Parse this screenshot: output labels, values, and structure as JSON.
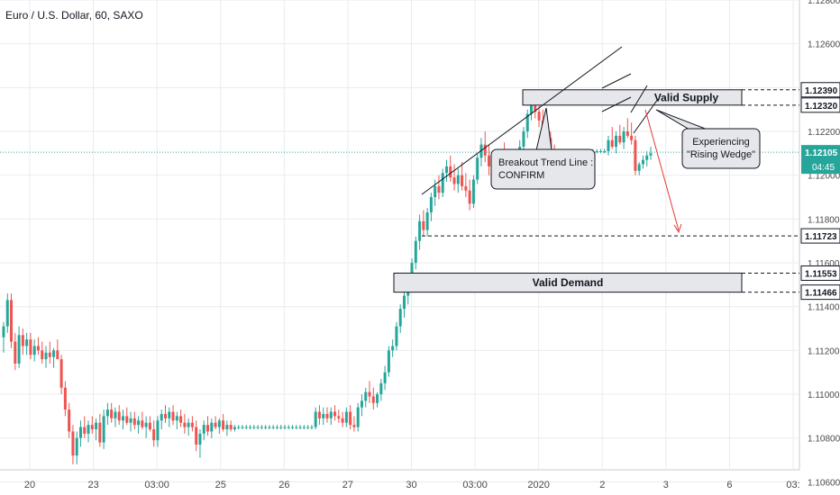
{
  "header": {
    "symbol_title": "Euro / U.S. Dollar, 60, SAXO"
  },
  "colors": {
    "up": "#26a69a",
    "down": "#ef5350",
    "grid": "#e9ebf0",
    "axis_text": "#4a4a4a",
    "current_line": "#26a69a",
    "label_bg": "#131722",
    "zone_fill": "#e6e7ea",
    "arrow": "#e53935"
  },
  "chart_data": {
    "type": "candlestick",
    "title": "Euro / U.S. Dollar, 60, SAXO",
    "ylim": [
      1.1054,
      1.128
    ],
    "y_ticks": [
      1.106,
      1.108,
      1.11,
      1.112,
      1.114,
      1.116,
      1.118,
      1.12,
      1.122,
      1.124,
      1.126,
      1.128
    ],
    "y_tick_labels": [
      "1.10600",
      "1.10800",
      "1.11000",
      "1.11200",
      "1.11400",
      "1.11600",
      "1.11800",
      "1.12000",
      "1.12200",
      "1.12400",
      "1.12600",
      "1.12800"
    ],
    "x_ticks": [
      "20",
      "23",
      "03:00",
      "25",
      "26",
      "27",
      "30",
      "03:00",
      "2020",
      "2",
      "3",
      "6",
      "03:"
    ],
    "price_labels": [
      {
        "value": 1.1239,
        "text": "1.12390"
      },
      {
        "value": 1.1232,
        "text": "1.12320"
      },
      {
        "value": 1.11723,
        "text": "1.11723"
      },
      {
        "value": 1.11553,
        "text": "1.11553"
      },
      {
        "value": 1.11466,
        "text": "1.11466"
      }
    ],
    "current_price": {
      "value": 1.12105,
      "text": "1.12105",
      "countdown": "04:45"
    },
    "zones": [
      {
        "label": "Valid Supply",
        "top": 1.1239,
        "bottom": 1.1232
      },
      {
        "label": "Valid Demand",
        "top": 1.11553,
        "bottom": 1.11466
      }
    ],
    "annotations": {
      "breakout": [
        "Breakout Trend Line :",
        "CONFIRM"
      ],
      "wedge": [
        "Experiencing",
        "\"Rising Wedge\""
      ]
    },
    "candles": [
      {
        "o": 1.1126,
        "h": 1.1133,
        "l": 1.1119,
        "c": 1.1131
      },
      {
        "o": 1.1131,
        "h": 1.1146,
        "l": 1.1128,
        "c": 1.1143
      },
      {
        "o": 1.1143,
        "h": 1.1146,
        "l": 1.1121,
        "c": 1.1124
      },
      {
        "o": 1.1124,
        "h": 1.1128,
        "l": 1.1111,
        "c": 1.1114
      },
      {
        "o": 1.1114,
        "h": 1.1131,
        "l": 1.1112,
        "c": 1.1127
      },
      {
        "o": 1.1127,
        "h": 1.113,
        "l": 1.1118,
        "c": 1.1122
      },
      {
        "o": 1.1122,
        "h": 1.1128,
        "l": 1.1118,
        "c": 1.1125
      },
      {
        "o": 1.1125,
        "h": 1.1128,
        "l": 1.1116,
        "c": 1.1118
      },
      {
        "o": 1.1118,
        "h": 1.1125,
        "l": 1.1115,
        "c": 1.1122
      },
      {
        "o": 1.1122,
        "h": 1.1126,
        "l": 1.1118,
        "c": 1.112
      },
      {
        "o": 1.112,
        "h": 1.1124,
        "l": 1.1114,
        "c": 1.1116
      },
      {
        "o": 1.1116,
        "h": 1.1122,
        "l": 1.1112,
        "c": 1.1119
      },
      {
        "o": 1.1119,
        "h": 1.1124,
        "l": 1.1114,
        "c": 1.1117
      },
      {
        "o": 1.1117,
        "h": 1.1121,
        "l": 1.1112,
        "c": 1.112
      },
      {
        "o": 1.112,
        "h": 1.1125,
        "l": 1.1116,
        "c": 1.1116
      },
      {
        "o": 1.1116,
        "h": 1.1118,
        "l": 1.11,
        "c": 1.1103
      },
      {
        "o": 1.1103,
        "h": 1.1106,
        "l": 1.109,
        "c": 1.1093
      },
      {
        "o": 1.1093,
        "h": 1.1096,
        "l": 1.108,
        "c": 1.1083
      },
      {
        "o": 1.1083,
        "h": 1.1086,
        "l": 1.1068,
        "c": 1.1072
      },
      {
        "o": 1.1072,
        "h": 1.1083,
        "l": 1.1068,
        "c": 1.108
      },
      {
        "o": 1.108,
        "h": 1.1088,
        "l": 1.1076,
        "c": 1.1085
      },
      {
        "o": 1.1085,
        "h": 1.109,
        "l": 1.108,
        "c": 1.1082
      },
      {
        "o": 1.1082,
        "h": 1.1088,
        "l": 1.1078,
        "c": 1.1086
      },
      {
        "o": 1.1086,
        "h": 1.109,
        "l": 1.1082,
        "c": 1.1084
      },
      {
        "o": 1.1084,
        "h": 1.1089,
        "l": 1.1079,
        "c": 1.1087
      },
      {
        "o": 1.1087,
        "h": 1.1091,
        "l": 1.1076,
        "c": 1.1078
      },
      {
        "o": 1.1078,
        "h": 1.1093,
        "l": 1.1075,
        "c": 1.109
      },
      {
        "o": 1.109,
        "h": 1.1096,
        "l": 1.1086,
        "c": 1.1093
      },
      {
        "o": 1.1093,
        "h": 1.1096,
        "l": 1.1087,
        "c": 1.1089
      },
      {
        "o": 1.1089,
        "h": 1.1094,
        "l": 1.1085,
        "c": 1.1092
      },
      {
        "o": 1.1092,
        "h": 1.1095,
        "l": 1.1086,
        "c": 1.1088
      },
      {
        "o": 1.1088,
        "h": 1.1093,
        "l": 1.1084,
        "c": 1.109
      },
      {
        "o": 1.109,
        "h": 1.1094,
        "l": 1.1086,
        "c": 1.1087
      },
      {
        "o": 1.1087,
        "h": 1.1092,
        "l": 1.1083,
        "c": 1.1089
      },
      {
        "o": 1.1089,
        "h": 1.1092,
        "l": 1.1084,
        "c": 1.1086
      },
      {
        "o": 1.1086,
        "h": 1.109,
        "l": 1.1082,
        "c": 1.1088
      },
      {
        "o": 1.1088,
        "h": 1.1092,
        "l": 1.1084,
        "c": 1.1085
      },
      {
        "o": 1.1085,
        "h": 1.109,
        "l": 1.108,
        "c": 1.1087
      },
      {
        "o": 1.1087,
        "h": 1.109,
        "l": 1.1083,
        "c": 1.1084
      },
      {
        "o": 1.1084,
        "h": 1.1088,
        "l": 1.1076,
        "c": 1.1079
      },
      {
        "o": 1.1079,
        "h": 1.109,
        "l": 1.1076,
        "c": 1.1088
      },
      {
        "o": 1.1088,
        "h": 1.1093,
        "l": 1.1084,
        "c": 1.1091
      },
      {
        "o": 1.1091,
        "h": 1.1095,
        "l": 1.1087,
        "c": 1.1089
      },
      {
        "o": 1.1089,
        "h": 1.1094,
        "l": 1.1085,
        "c": 1.1092
      },
      {
        "o": 1.1092,
        "h": 1.1095,
        "l": 1.1086,
        "c": 1.1088
      },
      {
        "o": 1.1088,
        "h": 1.1092,
        "l": 1.1084,
        "c": 1.109
      },
      {
        "o": 1.109,
        "h": 1.1093,
        "l": 1.1085,
        "c": 1.1087
      },
      {
        "o": 1.1087,
        "h": 1.1091,
        "l": 1.1082,
        "c": 1.1085
      },
      {
        "o": 1.1085,
        "h": 1.1089,
        "l": 1.1081,
        "c": 1.1087
      },
      {
        "o": 1.1087,
        "h": 1.109,
        "l": 1.1083,
        "c": 1.1085
      },
      {
        "o": 1.1085,
        "h": 1.1088,
        "l": 1.1074,
        "c": 1.1077
      },
      {
        "o": 1.1077,
        "h": 1.1084,
        "l": 1.1071,
        "c": 1.1082
      },
      {
        "o": 1.1082,
        "h": 1.1088,
        "l": 1.1079,
        "c": 1.1086
      },
      {
        "o": 1.1086,
        "h": 1.109,
        "l": 1.1081,
        "c": 1.1083
      },
      {
        "o": 1.1083,
        "h": 1.1089,
        "l": 1.108,
        "c": 1.1087
      },
      {
        "o": 1.1087,
        "h": 1.109,
        "l": 1.1084,
        "c": 1.1085
      },
      {
        "o": 1.1085,
        "h": 1.1089,
        "l": 1.1082,
        "c": 1.1088
      },
      {
        "o": 1.1088,
        "h": 1.1091,
        "l": 1.1083,
        "c": 1.1084
      },
      {
        "o": 1.1084,
        "h": 1.1088,
        "l": 1.1081,
        "c": 1.1086
      },
      {
        "o": 1.1086,
        "h": 1.1088,
        "l": 1.1083,
        "c": 1.1084
      },
      {
        "o": 1.1084,
        "h": 1.1086,
        "l": 1.1083,
        "c": 1.1085
      },
      {
        "o": 1.1085,
        "h": 1.1086,
        "l": 1.1084,
        "c": 1.1085
      },
      {
        "o": 1.1085,
        "h": 1.1086,
        "l": 1.1084,
        "c": 1.1085
      },
      {
        "o": 1.1085,
        "h": 1.1086,
        "l": 1.1084,
        "c": 1.1085
      },
      {
        "o": 1.1085,
        "h": 1.1086,
        "l": 1.1084,
        "c": 1.1085
      },
      {
        "o": 1.1085,
        "h": 1.1086,
        "l": 1.1084,
        "c": 1.1085
      },
      {
        "o": 1.1085,
        "h": 1.1086,
        "l": 1.1084,
        "c": 1.1085
      },
      {
        "o": 1.1085,
        "h": 1.1086,
        "l": 1.1084,
        "c": 1.1085
      },
      {
        "o": 1.1085,
        "h": 1.1086,
        "l": 1.1084,
        "c": 1.1085
      },
      {
        "o": 1.1085,
        "h": 1.1086,
        "l": 1.1084,
        "c": 1.1085
      },
      {
        "o": 1.1085,
        "h": 1.1086,
        "l": 1.1084,
        "c": 1.1085
      },
      {
        "o": 1.1085,
        "h": 1.1086,
        "l": 1.1084,
        "c": 1.1085
      },
      {
        "o": 1.1085,
        "h": 1.1086,
        "l": 1.1084,
        "c": 1.1085
      },
      {
        "o": 1.1085,
        "h": 1.1086,
        "l": 1.1084,
        "c": 1.1085
      },
      {
        "o": 1.1085,
        "h": 1.1086,
        "l": 1.1084,
        "c": 1.1085
      },
      {
        "o": 1.1085,
        "h": 1.1086,
        "l": 1.1084,
        "c": 1.1085
      },
      {
        "o": 1.1085,
        "h": 1.1086,
        "l": 1.1084,
        "c": 1.1085
      },
      {
        "o": 1.1085,
        "h": 1.1086,
        "l": 1.1084,
        "c": 1.1085
      },
      {
        "o": 1.1085,
        "h": 1.1086,
        "l": 1.1084,
        "c": 1.1085
      },
      {
        "o": 1.1085,
        "h": 1.1086,
        "l": 1.1084,
        "c": 1.1085
      },
      {
        "o": 1.1085,
        "h": 1.1086,
        "l": 1.1084,
        "c": 1.1085
      },
      {
        "o": 1.1085,
        "h": 1.1094,
        "l": 1.1084,
        "c": 1.1092
      },
      {
        "o": 1.1092,
        "h": 1.1095,
        "l": 1.1086,
        "c": 1.1089
      },
      {
        "o": 1.1089,
        "h": 1.1094,
        "l": 1.1086,
        "c": 1.1091
      },
      {
        "o": 1.1091,
        "h": 1.1094,
        "l": 1.1087,
        "c": 1.1089
      },
      {
        "o": 1.1089,
        "h": 1.1094,
        "l": 1.1086,
        "c": 1.1092
      },
      {
        "o": 1.1092,
        "h": 1.1095,
        "l": 1.1088,
        "c": 1.109
      },
      {
        "o": 1.109,
        "h": 1.1093,
        "l": 1.1087,
        "c": 1.1089
      },
      {
        "o": 1.1089,
        "h": 1.1092,
        "l": 1.1085,
        "c": 1.1087
      },
      {
        "o": 1.1087,
        "h": 1.1094,
        "l": 1.1085,
        "c": 1.1092
      },
      {
        "o": 1.1092,
        "h": 1.1095,
        "l": 1.1084,
        "c": 1.1086
      },
      {
        "o": 1.1086,
        "h": 1.109,
        "l": 1.1083,
        "c": 1.1085
      },
      {
        "o": 1.1085,
        "h": 1.1096,
        "l": 1.1083,
        "c": 1.1094
      },
      {
        "o": 1.1094,
        "h": 1.11,
        "l": 1.109,
        "c": 1.1097
      },
      {
        "o": 1.1097,
        "h": 1.1103,
        "l": 1.1094,
        "c": 1.1101
      },
      {
        "o": 1.1101,
        "h": 1.1106,
        "l": 1.1096,
        "c": 1.1099
      },
      {
        "o": 1.1099,
        "h": 1.1103,
        "l": 1.1093,
        "c": 1.1096
      },
      {
        "o": 1.1096,
        "h": 1.1101,
        "l": 1.1094,
        "c": 1.11
      },
      {
        "o": 1.11,
        "h": 1.1107,
        "l": 1.1097,
        "c": 1.1105
      },
      {
        "o": 1.1105,
        "h": 1.1113,
        "l": 1.1102,
        "c": 1.111
      },
      {
        "o": 1.111,
        "h": 1.1122,
        "l": 1.1108,
        "c": 1.112
      },
      {
        "o": 1.112,
        "h": 1.1125,
        "l": 1.1117,
        "c": 1.1122
      },
      {
        "o": 1.1122,
        "h": 1.1133,
        "l": 1.112,
        "c": 1.1131
      },
      {
        "o": 1.1131,
        "h": 1.1141,
        "l": 1.1128,
        "c": 1.1139
      },
      {
        "o": 1.1139,
        "h": 1.1147,
        "l": 1.1135,
        "c": 1.1145
      },
      {
        "o": 1.1145,
        "h": 1.1153,
        "l": 1.1141,
        "c": 1.1151
      },
      {
        "o": 1.1151,
        "h": 1.1162,
        "l": 1.1148,
        "c": 1.116
      },
      {
        "o": 1.116,
        "h": 1.1172,
        "l": 1.1157,
        "c": 1.117
      },
      {
        "o": 1.117,
        "h": 1.1182,
        "l": 1.1166,
        "c": 1.1179
      },
      {
        "o": 1.1179,
        "h": 1.1184,
        "l": 1.1172,
        "c": 1.1175
      },
      {
        "o": 1.1175,
        "h": 1.1185,
        "l": 1.1172,
        "c": 1.1183
      },
      {
        "o": 1.1183,
        "h": 1.1192,
        "l": 1.1179,
        "c": 1.119
      },
      {
        "o": 1.119,
        "h": 1.1198,
        "l": 1.1186,
        "c": 1.1195
      },
      {
        "o": 1.1195,
        "h": 1.12,
        "l": 1.1189,
        "c": 1.1192
      },
      {
        "o": 1.1192,
        "h": 1.1203,
        "l": 1.119,
        "c": 1.1201
      },
      {
        "o": 1.1201,
        "h": 1.1207,
        "l": 1.1197,
        "c": 1.1204
      },
      {
        "o": 1.1204,
        "h": 1.1209,
        "l": 1.1197,
        "c": 1.1199
      },
      {
        "o": 1.1199,
        "h": 1.1205,
        "l": 1.1193,
        "c": 1.1196
      },
      {
        "o": 1.1196,
        "h": 1.1203,
        "l": 1.1192,
        "c": 1.12
      },
      {
        "o": 1.12,
        "h": 1.1206,
        "l": 1.1193,
        "c": 1.1195
      },
      {
        "o": 1.1195,
        "h": 1.1201,
        "l": 1.119,
        "c": 1.1193
      },
      {
        "o": 1.1193,
        "h": 1.1198,
        "l": 1.1184,
        "c": 1.1187
      },
      {
        "o": 1.1187,
        "h": 1.12,
        "l": 1.1185,
        "c": 1.1198
      },
      {
        "o": 1.1198,
        "h": 1.121,
        "l": 1.1196,
        "c": 1.1208
      },
      {
        "o": 1.1208,
        "h": 1.1217,
        "l": 1.1204,
        "c": 1.1214
      },
      {
        "o": 1.1214,
        "h": 1.122,
        "l": 1.1206,
        "c": 1.1209
      },
      {
        "o": 1.1209,
        "h": 1.1214,
        "l": 1.12,
        "c": 1.1204
      },
      {
        "o": 1.1204,
        "h": 1.121,
        "l": 1.1199,
        "c": 1.1207
      },
      {
        "o": 1.1207,
        "h": 1.1212,
        "l": 1.1201,
        "c": 1.1203
      },
      {
        "o": 1.1203,
        "h": 1.1211,
        "l": 1.12,
        "c": 1.1209
      },
      {
        "o": 1.1209,
        "h": 1.1215,
        "l": 1.1203,
        "c": 1.1206
      },
      {
        "o": 1.1206,
        "h": 1.1211,
        "l": 1.12,
        "c": 1.1202
      },
      {
        "o": 1.1202,
        "h": 1.1208,
        "l": 1.1199,
        "c": 1.1205
      },
      {
        "o": 1.1205,
        "h": 1.1212,
        "l": 1.1202,
        "c": 1.121
      },
      {
        "o": 1.121,
        "h": 1.1216,
        "l": 1.1206,
        "c": 1.1213
      },
      {
        "o": 1.1213,
        "h": 1.1222,
        "l": 1.121,
        "c": 1.122
      },
      {
        "o": 1.122,
        "h": 1.123,
        "l": 1.1217,
        "c": 1.1228
      },
      {
        "o": 1.1228,
        "h": 1.1239,
        "l": 1.1225,
        "c": 1.1236
      },
      {
        "o": 1.1236,
        "h": 1.1239,
        "l": 1.1226,
        "c": 1.1229
      },
      {
        "o": 1.1229,
        "h": 1.1235,
        "l": 1.1222,
        "c": 1.1225
      },
      {
        "o": 1.1225,
        "h": 1.123,
        "l": 1.1218,
        "c": 1.1221
      },
      {
        "o": 1.1221,
        "h": 1.1226,
        "l": 1.1214,
        "c": 1.1217
      },
      {
        "o": 1.1217,
        "h": 1.122,
        "l": 1.121,
        "c": 1.1212
      },
      {
        "o": 1.1212,
        "h": 1.1214,
        "l": 1.121,
        "c": 1.1211
      },
      {
        "o": 1.1211,
        "h": 1.1212,
        "l": 1.121,
        "c": 1.1211
      },
      {
        "o": 1.1211,
        "h": 1.1212,
        "l": 1.121,
        "c": 1.1211
      },
      {
        "o": 1.1211,
        "h": 1.1212,
        "l": 1.121,
        "c": 1.1211
      },
      {
        "o": 1.1211,
        "h": 1.1212,
        "l": 1.121,
        "c": 1.1211
      },
      {
        "o": 1.1211,
        "h": 1.1212,
        "l": 1.121,
        "c": 1.1211
      },
      {
        "o": 1.1211,
        "h": 1.1212,
        "l": 1.121,
        "c": 1.1211
      },
      {
        "o": 1.1211,
        "h": 1.1212,
        "l": 1.121,
        "c": 1.1211
      },
      {
        "o": 1.1211,
        "h": 1.1212,
        "l": 1.121,
        "c": 1.1211
      },
      {
        "o": 1.1211,
        "h": 1.1212,
        "l": 1.121,
        "c": 1.1211
      },
      {
        "o": 1.1211,
        "h": 1.1212,
        "l": 1.121,
        "c": 1.1211
      },
      {
        "o": 1.1211,
        "h": 1.1212,
        "l": 1.121,
        "c": 1.1211
      },
      {
        "o": 1.1211,
        "h": 1.1212,
        "l": 1.121,
        "c": 1.1211
      },
      {
        "o": 1.1211,
        "h": 1.1212,
        "l": 1.121,
        "c": 1.1211
      },
      {
        "o": 1.1211,
        "h": 1.1218,
        "l": 1.1209,
        "c": 1.1216
      },
      {
        "o": 1.1216,
        "h": 1.1222,
        "l": 1.1212,
        "c": 1.1213
      },
      {
        "o": 1.1213,
        "h": 1.122,
        "l": 1.121,
        "c": 1.1218
      },
      {
        "o": 1.1218,
        "h": 1.1223,
        "l": 1.1214,
        "c": 1.1215
      },
      {
        "o": 1.1215,
        "h": 1.1222,
        "l": 1.1212,
        "c": 1.122
      },
      {
        "o": 1.122,
        "h": 1.1226,
        "l": 1.1217,
        "c": 1.1218
      },
      {
        "o": 1.1218,
        "h": 1.1224,
        "l": 1.1214,
        "c": 1.1216
      },
      {
        "o": 1.1216,
        "h": 1.1218,
        "l": 1.12,
        "c": 1.1202
      },
      {
        "o": 1.1202,
        "h": 1.1206,
        "l": 1.12,
        "c": 1.1205
      },
      {
        "o": 1.1205,
        "h": 1.1209,
        "l": 1.1203,
        "c": 1.1207
      },
      {
        "o": 1.1207,
        "h": 1.1211,
        "l": 1.1204,
        "c": 1.1209
      },
      {
        "o": 1.1209,
        "h": 1.1213,
        "l": 1.1207,
        "c": 1.121
      }
    ]
  }
}
